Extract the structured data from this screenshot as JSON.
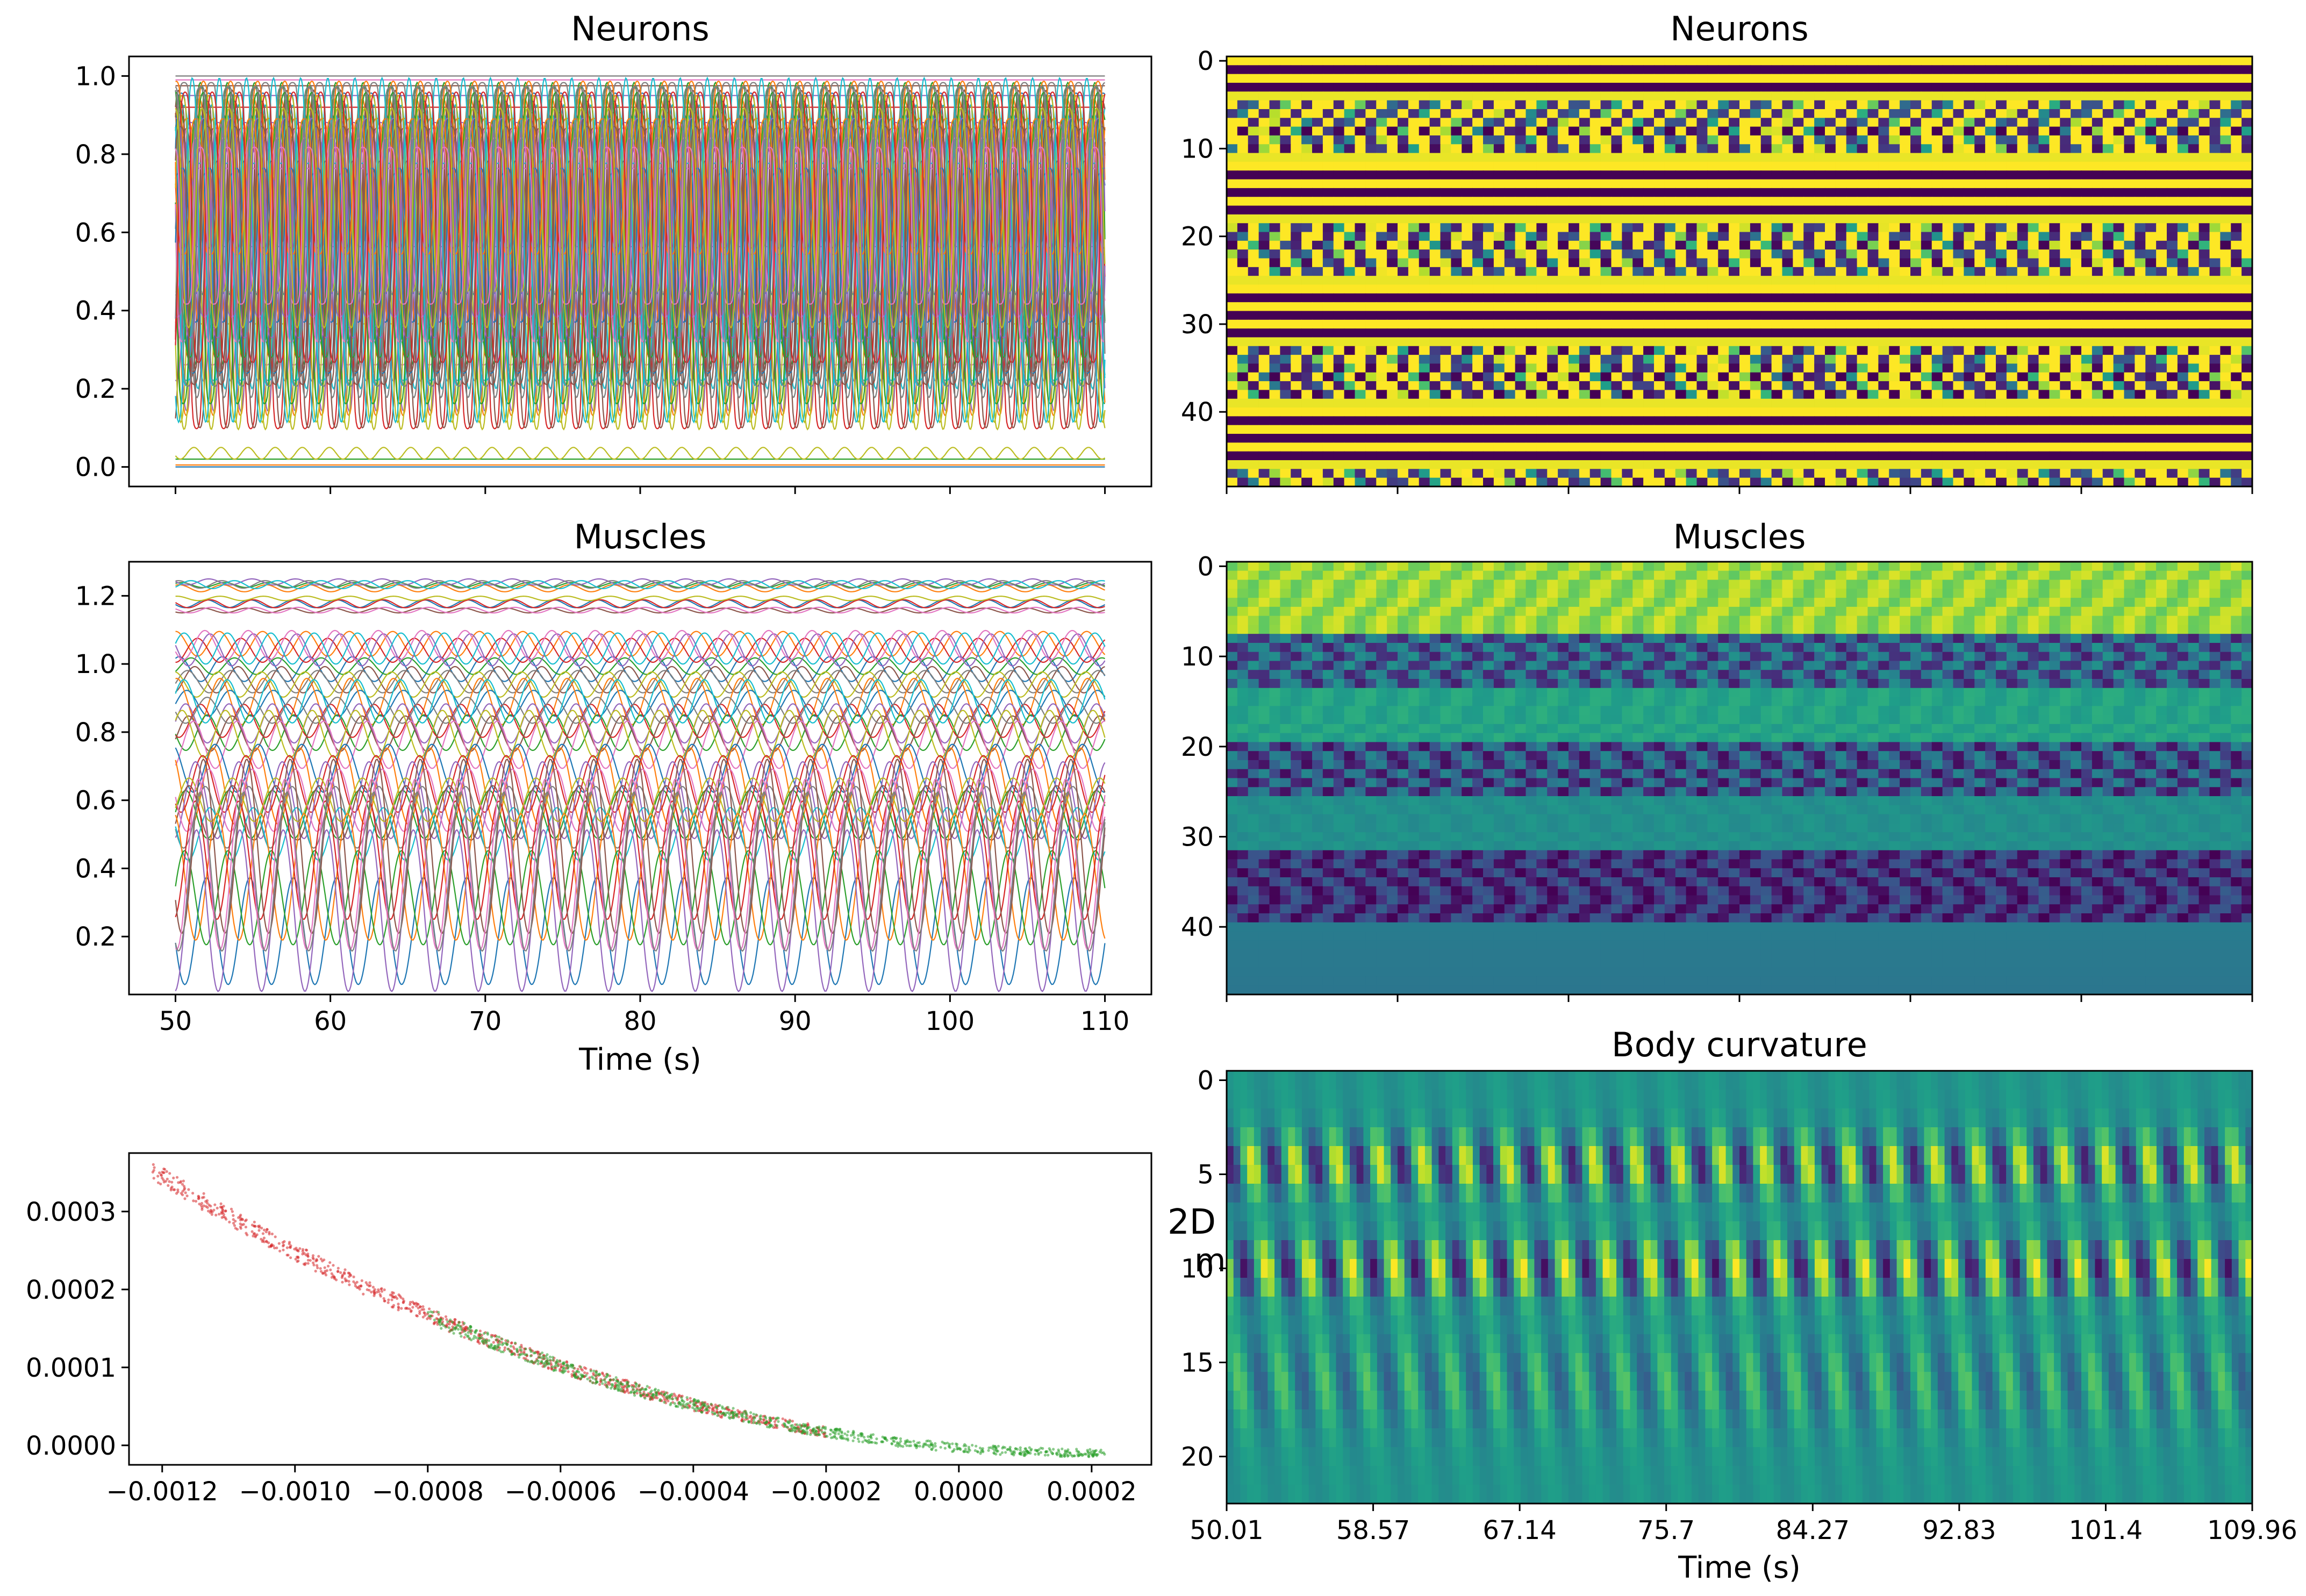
{
  "chart_data": [
    {
      "type": "line",
      "title": "Neurons",
      "xlim": [
        47,
        113
      ],
      "ylim": [
        -0.05,
        1.05
      ],
      "xticks": [
        50,
        60,
        70,
        80,
        90,
        100,
        110
      ],
      "xtick_labels_visible": false,
      "yticks": [
        "0.0",
        "0.2",
        "0.4",
        "0.6",
        "0.8",
        "1.0"
      ],
      "x_range": [
        50,
        110
      ],
      "series_count": 49,
      "oscillation_period_s": 1.75,
      "flat_levels": [
        0.0,
        0.005,
        0.02,
        0.92,
        0.95,
        0.975,
        0.99,
        1.0
      ],
      "low_amp_wave": {
        "center": 0.035,
        "amplitude": 0.015
      },
      "saturated_series": {
        "min": 0.08,
        "max": 0.995
      },
      "colors": [
        "#1f77b4",
        "#ff7f0e",
        "#2ca02c",
        "#d62728",
        "#9467bd",
        "#8c564b",
        "#e377c2",
        "#7f7f7f",
        "#bcbd22",
        "#17becf"
      ]
    },
    {
      "type": "heatmap",
      "title": "Neurons",
      "rows": 49,
      "yticks": [
        "0",
        "10",
        "20",
        "30",
        "40"
      ],
      "colormap": "viridis",
      "row_pattern": "bands of constant (yellow / dark purple) rows alternating with oscillating groups"
    },
    {
      "type": "line",
      "title": "Muscles",
      "xlabel": "Time (s)",
      "xlim": [
        47,
        113
      ],
      "ylim": [
        0.03,
        1.3
      ],
      "xticks": [
        "50",
        "60",
        "70",
        "80",
        "90",
        "100",
        "110"
      ],
      "yticks": [
        "0.2",
        "0.4",
        "0.6",
        "0.8",
        "1.0",
        "1.2"
      ],
      "series_count": 48,
      "oscillation_period_s": 2.8,
      "band_groups": [
        {
          "center": 1.2,
          "amplitude": 0.01
        },
        {
          "center": 1.0,
          "amplitude": 0.04
        },
        {
          "center": 0.82,
          "amplitude": 0.06
        },
        {
          "center": 0.6,
          "amplitude": 0.1
        },
        {
          "center": 0.35,
          "amplitude": 0.22
        }
      ],
      "colors": [
        "#1f77b4",
        "#ff7f0e",
        "#2ca02c",
        "#d62728",
        "#9467bd",
        "#8c564b",
        "#e377c2",
        "#7f7f7f",
        "#bcbd22",
        "#17becf"
      ]
    },
    {
      "type": "heatmap",
      "title": "Muscles",
      "rows": 48,
      "yticks": [
        "0",
        "10",
        "20",
        "30",
        "40"
      ],
      "colormap": "viridis",
      "row_pattern": "top block bright, then alternating dark-oscillating and teal blocks, bottom uniform teal"
    },
    {
      "type": "scatter",
      "title": "",
      "xlim": [
        -0.00125,
        0.00029
      ],
      "ylim": [
        -2.5e-05,
        0.000375
      ],
      "xticks": [
        "−0.0012",
        "−0.0010",
        "−0.0008",
        "−0.0006",
        "−0.0004",
        "−0.0002",
        "0.0000",
        "0.0002"
      ],
      "yticks": [
        "0.0000",
        "0.0001",
        "0.0002",
        "0.0003"
      ],
      "curve": {
        "x_start": -0.00122,
        "x_end": 0.00022,
        "y_start": 0.000355,
        "y_end": -1e-05
      },
      "series": [
        {
          "color": "#d62728",
          "x_range": [
            -0.00122,
            -0.0002
          ]
        },
        {
          "color": "#2ca02c",
          "x_range": [
            -0.0008,
            0.00022
          ]
        }
      ]
    },
    {
      "type": "heatmap",
      "title": "Body curvature",
      "xlabel": "Time (s)",
      "rows": 23,
      "yticks": [
        "0",
        "5",
        "10",
        "15",
        "20"
      ],
      "xticks": [
        "50.01",
        "58.57",
        "67.14",
        "75.7",
        "84.27",
        "92.83",
        "101.4",
        "109.96"
      ],
      "colormap": "viridis",
      "row_pattern": "diagonal travelling waves, strongest near rows 5 and 10",
      "overlap_text": [
        "2D",
        "m"
      ]
    }
  ]
}
